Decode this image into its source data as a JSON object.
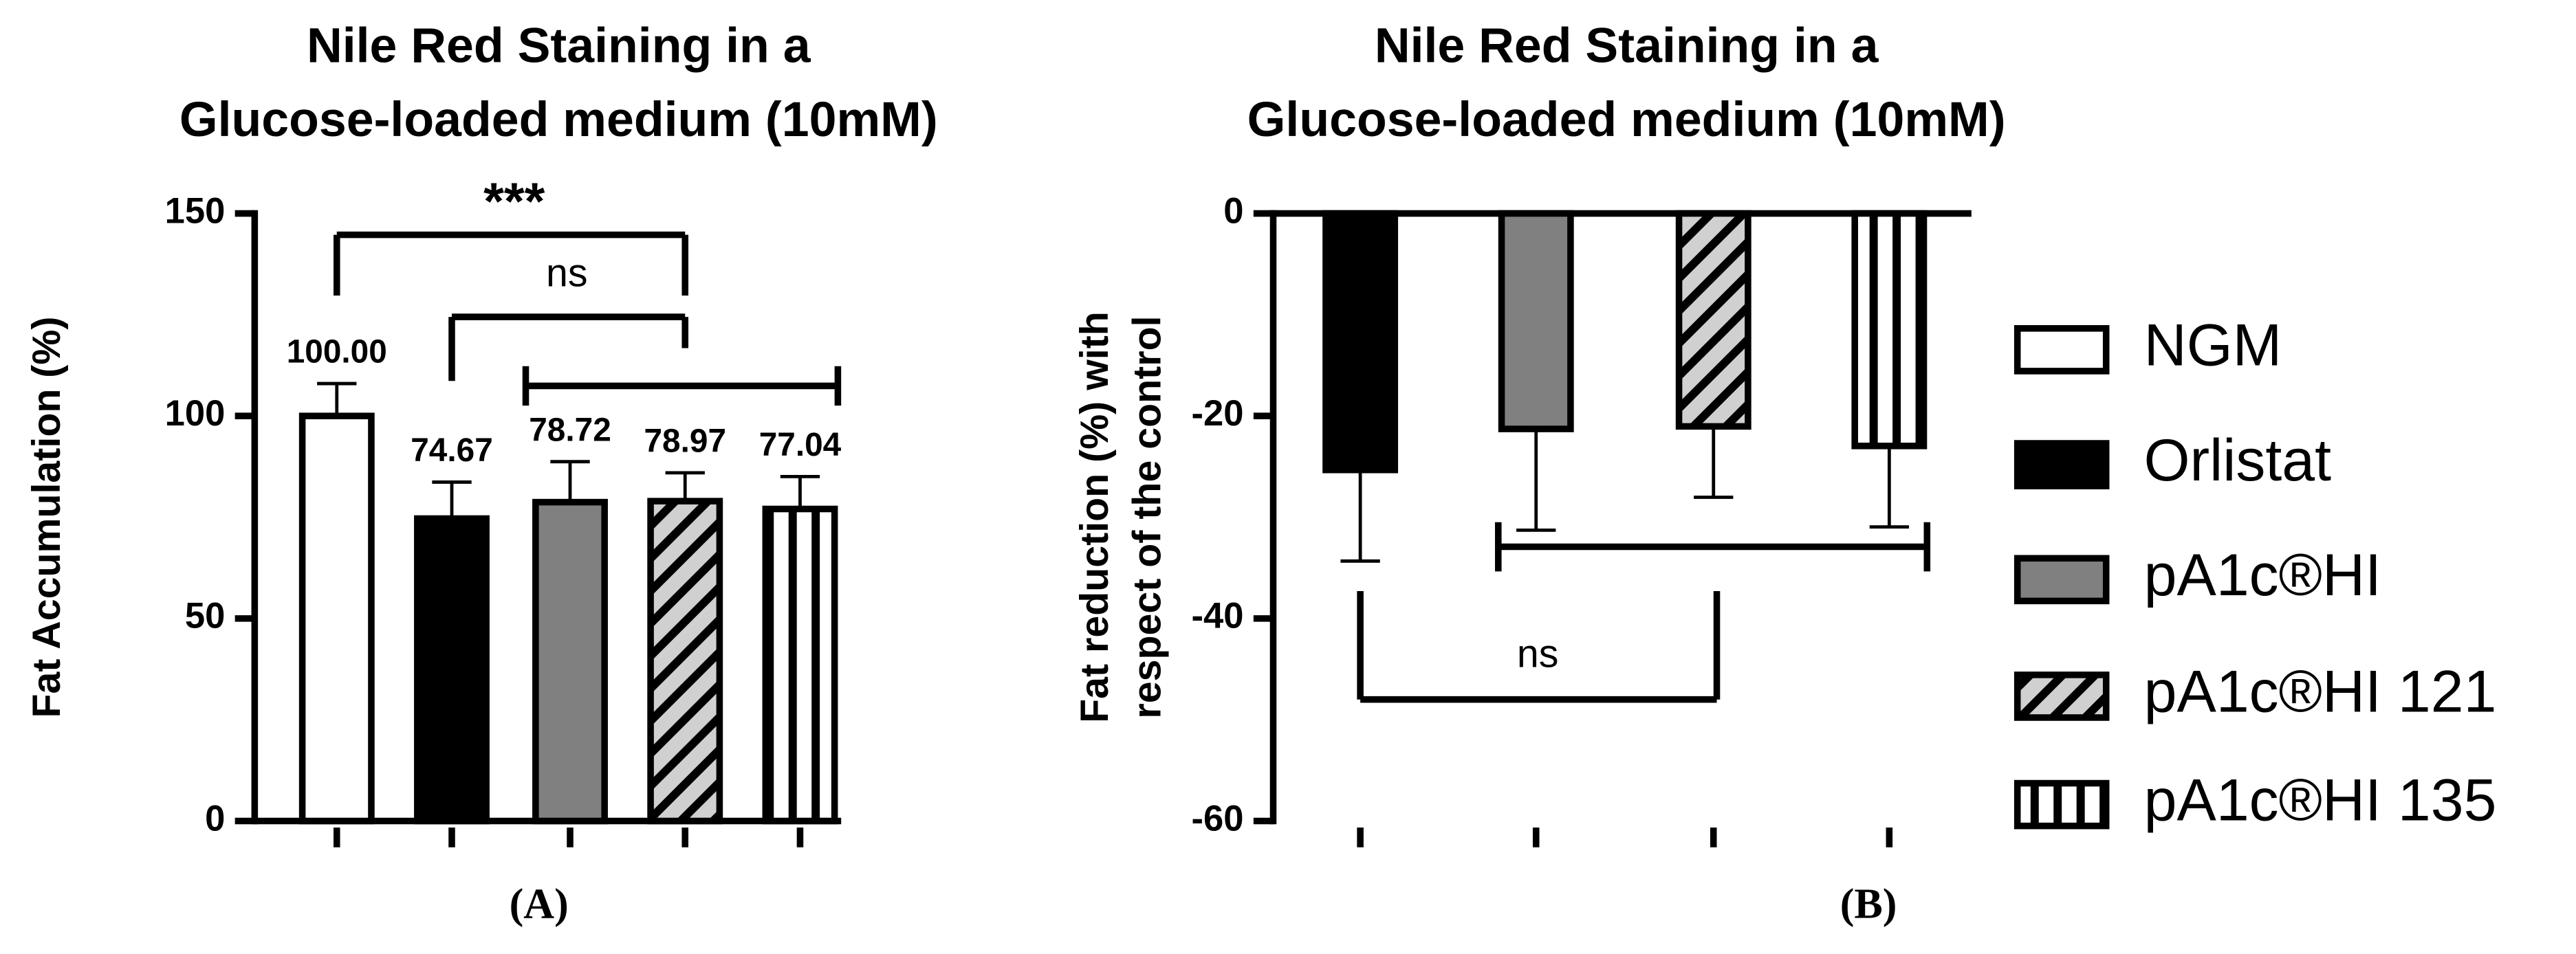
{
  "chart_data": [
    {
      "type": "bar",
      "title": [
        "Nile Red Staining in a",
        "Glucose-loaded medium (10mM)"
      ],
      "ylabel": [
        "Fat Accumulation (%)"
      ],
      "categories": [
        "NGM",
        "Orlistat",
        "pA1c®HI",
        "pA1c®HI 121",
        "pA1c®HI 135"
      ],
      "values": [
        100,
        74.67,
        78.72,
        78.97,
        77.04
      ],
      "value_labels": [
        "100.00",
        "74.67",
        "78.72",
        "78.97",
        "77.04"
      ],
      "errors": [
        8,
        9,
        10,
        7,
        8
      ],
      "colors": [
        "#ffffff",
        "#000000",
        "#808080",
        "#d0d0d0",
        "#ffffff"
      ],
      "patterns": [
        null,
        null,
        null,
        "diagonal",
        "vertical"
      ],
      "ylim": [
        0,
        150
      ],
      "yticks": [
        0,
        50,
        100,
        150
      ],
      "annotations": [
        "***",
        "ns"
      ],
      "panel_label": "(A)"
    },
    {
      "type": "bar",
      "title": [
        "Nile Red Staining in a",
        "Glucose-loaded medium (10mM)"
      ],
      "ylabel": [
        "Fat reduction (%) with",
        "respect of the control"
      ],
      "values": [
        -25.33,
        -21.28,
        -21.03,
        -22.96
      ],
      "errors": [
        9,
        10,
        7,
        8
      ],
      "colors": [
        "#000000",
        "#808080",
        "#d0d0d0",
        "#ffffff"
      ],
      "patterns": [
        null,
        null,
        "diagonal",
        "vertical"
      ],
      "ylim": [
        -60,
        0
      ],
      "yticks": [
        0,
        -20,
        -40,
        -60
      ],
      "annotations": [
        "ns"
      ],
      "panel_label": "(B)"
    }
  ]
}
